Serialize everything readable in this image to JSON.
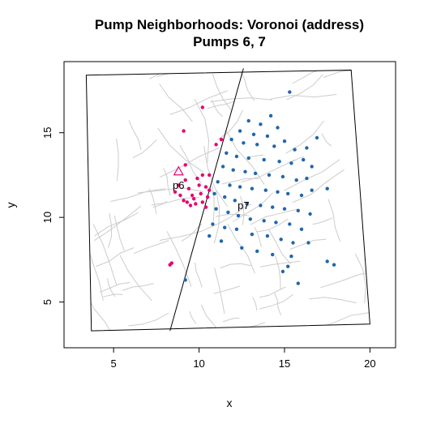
{
  "chart_data": {
    "type": "scatter",
    "title": "Pump Neighborhoods: Voronoi (address)",
    "subtitle": "Pumps 6, 7",
    "xlabel": "x",
    "ylabel": "y",
    "xlim": [
      2.1,
      21.5
    ],
    "ylim": [
      2.3,
      19.2
    ],
    "xticks": [
      5,
      10,
      15,
      20
    ],
    "yticks": [
      5,
      10,
      15
    ],
    "grid": false,
    "colors": {
      "pump6": "#e7006f",
      "pump7": "#2166ac",
      "streets": "#cccccc",
      "frame": "#000000"
    },
    "pumps": [
      {
        "label": "p6",
        "x": 8.8,
        "y": 12.7,
        "color": "#e7006f"
      },
      {
        "label": "p7",
        "x": 12.6,
        "y": 11.5,
        "color": "#2166ac"
      }
    ],
    "map_frame": [
      [
        3.4,
        18.4
      ],
      [
        18.9,
        18.7
      ],
      [
        20.0,
        3.7
      ],
      [
        3.7,
        3.3
      ]
    ],
    "voronoi_edge": [
      [
        12.6,
        18.8
      ],
      [
        8.3,
        3.3
      ]
    ],
    "series": [
      {
        "name": "p6",
        "color": "#e7006f",
        "points": [
          [
            10.2,
            16.5
          ],
          [
            9.1,
            15.1
          ],
          [
            11.3,
            14.6
          ],
          [
            11.0,
            14.3
          ],
          [
            9.2,
            13.1
          ],
          [
            9.9,
            12.3
          ],
          [
            10.2,
            12.5
          ],
          [
            10.6,
            12.5
          ],
          [
            8.8,
            11.9
          ],
          [
            9.2,
            12.2
          ],
          [
            10.0,
            11.9
          ],
          [
            10.4,
            11.8
          ],
          [
            8.6,
            11.5
          ],
          [
            9.4,
            11.7
          ],
          [
            9.6,
            11.3
          ],
          [
            10.1,
            11.4
          ],
          [
            10.5,
            11.2
          ],
          [
            9.1,
            11.0
          ],
          [
            9.3,
            10.9
          ],
          [
            9.5,
            10.7
          ],
          [
            9.8,
            10.8
          ],
          [
            10.2,
            10.9
          ],
          [
            10.4,
            10.6
          ],
          [
            8.9,
            11.3
          ],
          [
            9.7,
            11.1
          ],
          [
            10.6,
            11.6
          ],
          [
            8.4,
            7.3
          ],
          [
            8.3,
            7.2
          ]
        ]
      },
      {
        "name": "p7",
        "color": "#2166ac",
        "points": [
          [
            15.3,
            17.4
          ],
          [
            14.2,
            16.0
          ],
          [
            12.9,
            15.7
          ],
          [
            13.6,
            15.5
          ],
          [
            14.6,
            15.3
          ],
          [
            12.4,
            15.1
          ],
          [
            13.2,
            14.9
          ],
          [
            14.0,
            14.8
          ],
          [
            15.0,
            14.5
          ],
          [
            11.9,
            14.6
          ],
          [
            12.6,
            14.4
          ],
          [
            13.4,
            14.3
          ],
          [
            14.4,
            14.2
          ],
          [
            15.6,
            14.0
          ],
          [
            16.3,
            14.1
          ],
          [
            16.9,
            14.7
          ],
          [
            11.6,
            13.8
          ],
          [
            12.2,
            13.6
          ],
          [
            12.9,
            13.5
          ],
          [
            13.8,
            13.4
          ],
          [
            14.7,
            13.3
          ],
          [
            15.4,
            13.2
          ],
          [
            16.1,
            13.4
          ],
          [
            16.6,
            13.0
          ],
          [
            11.4,
            13.0
          ],
          [
            12.0,
            12.8
          ],
          [
            12.7,
            12.7
          ],
          [
            13.3,
            12.6
          ],
          [
            14.1,
            12.5
          ],
          [
            14.9,
            12.4
          ],
          [
            15.7,
            12.2
          ],
          [
            16.3,
            12.3
          ],
          [
            11.1,
            12.1
          ],
          [
            11.8,
            11.9
          ],
          [
            12.4,
            11.8
          ],
          [
            13.1,
            11.7
          ],
          [
            13.9,
            11.6
          ],
          [
            14.6,
            11.5
          ],
          [
            15.2,
            11.4
          ],
          [
            16.0,
            11.3
          ],
          [
            16.6,
            11.6
          ],
          [
            17.5,
            11.7
          ],
          [
            10.9,
            11.4
          ],
          [
            11.5,
            11.2
          ],
          [
            12.1,
            11.0
          ],
          [
            12.8,
            10.8
          ],
          [
            13.6,
            10.7
          ],
          [
            14.3,
            10.6
          ],
          [
            15.0,
            10.5
          ],
          [
            15.8,
            10.4
          ],
          [
            16.5,
            10.2
          ],
          [
            11.0,
            10.5
          ],
          [
            11.7,
            10.3
          ],
          [
            12.3,
            10.1
          ],
          [
            13.0,
            9.9
          ],
          [
            13.8,
            9.8
          ],
          [
            14.5,
            9.7
          ],
          [
            15.3,
            9.6
          ],
          [
            16.0,
            9.3
          ],
          [
            10.8,
            9.6
          ],
          [
            11.5,
            9.4
          ],
          [
            12.2,
            9.3
          ],
          [
            13.1,
            9.0
          ],
          [
            14.0,
            8.9
          ],
          [
            14.8,
            8.7
          ],
          [
            15.5,
            8.5
          ],
          [
            16.4,
            8.5
          ],
          [
            10.6,
            8.9
          ],
          [
            11.3,
            8.6
          ],
          [
            12.5,
            8.2
          ],
          [
            13.4,
            8.0
          ],
          [
            14.3,
            7.8
          ],
          [
            15.4,
            7.7
          ],
          [
            17.5,
            7.4
          ],
          [
            17.9,
            7.2
          ],
          [
            15.2,
            7.1
          ],
          [
            15.8,
            6.1
          ],
          [
            14.9,
            6.8
          ],
          [
            9.2,
            6.3
          ]
        ]
      }
    ]
  }
}
